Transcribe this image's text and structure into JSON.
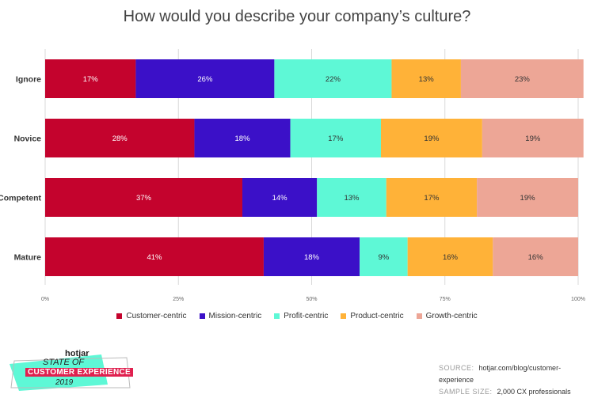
{
  "chart_data": {
    "type": "bar",
    "orientation": "horizontal-stacked",
    "title": "How would you describe your company’s culture?",
    "categories": [
      "Ignore",
      "Novice",
      "Competent",
      "Mature"
    ],
    "series": [
      {
        "name": "Customer-centric",
        "color": "#c4032d",
        "values": [
          17,
          28,
          37,
          41
        ]
      },
      {
        "name": "Mission-centric",
        "color": "#3b10c8",
        "values": [
          26,
          18,
          14,
          18
        ]
      },
      {
        "name": "Profit-centric",
        "color": "#5ef8d6",
        "values": [
          22,
          17,
          13,
          9
        ]
      },
      {
        "name": "Product-centric",
        "color": "#ffb238",
        "values": [
          13,
          19,
          17,
          16
        ]
      },
      {
        "name": "Growth-centric",
        "color": "#eda696",
        "values": [
          23,
          19,
          19,
          16
        ]
      }
    ],
    "x_ticks": [
      "0%",
      "25%",
      "50%",
      "75%",
      "100%"
    ],
    "xlim": [
      0,
      100
    ],
    "label_colors": [
      "#ffffff",
      "#ffffff",
      "#333333",
      "#333333",
      "#333333"
    ],
    "grid": true,
    "legend_position": "bottom"
  },
  "footer": {
    "source_label": "SOURCE:",
    "source_value": "hotjar.com/blog/customer-experience",
    "sample_label": "SAMPLE SIZE:",
    "sample_value": "2,000 CX professionals"
  },
  "brand": {
    "logo": "hotjar",
    "line1": "STATE OF",
    "line2": "CUSTOMER EXPERIENCE",
    "line3": "2019"
  }
}
